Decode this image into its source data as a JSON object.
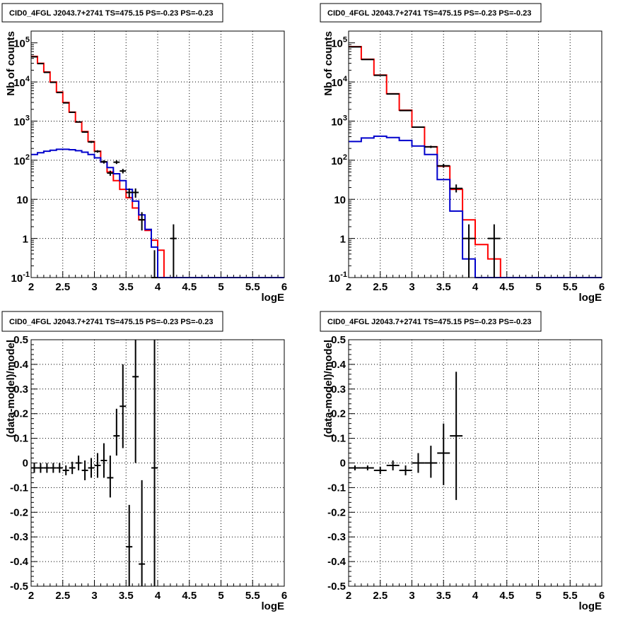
{
  "chart_data": [
    {
      "type": "line",
      "title": "CID0_4FGL J2043.7+2741 TS=475.15 PS=-0.23 PS=-0.23",
      "xlabel": "logE",
      "ylabel": "Nb of counts",
      "xlim": [
        2,
        6
      ],
      "ylim": [
        0.1,
        200000
      ],
      "yscale": "log",
      "x_ticks": [
        "2",
        "2.5",
        "3",
        "3.5",
        "4",
        "4.5",
        "5",
        "5.5",
        "6"
      ],
      "y_ticks": [
        {
          "value": 0.1,
          "base": "10",
          "exp": "-1"
        },
        {
          "value": 1,
          "base": "1",
          "exp": ""
        },
        {
          "value": 10,
          "base": "10",
          "exp": ""
        },
        {
          "value": 100,
          "base": "10",
          "exp": "2"
        },
        {
          "value": 1000,
          "base": "10",
          "exp": "3"
        },
        {
          "value": 10000,
          "base": "10",
          "exp": "4"
        },
        {
          "value": 100000,
          "base": "10",
          "exp": "5"
        }
      ],
      "grid": true,
      "bin_edges": [
        2.0,
        2.1,
        2.2,
        2.3,
        2.4,
        2.5,
        2.6,
        2.7,
        2.8,
        2.9,
        3.0,
        3.1,
        3.2,
        3.3,
        3.4,
        3.5,
        3.6,
        3.7,
        3.8,
        3.9,
        4.0,
        4.1,
        4.2,
        4.3,
        4.4,
        4.5,
        4.6,
        4.7,
        4.8,
        4.9,
        5.0,
        5.1,
        5.2,
        5.3,
        5.4,
        5.5,
        5.6,
        5.7,
        5.8,
        5.9,
        6.0
      ],
      "series": [
        {
          "color": "#ff0000",
          "values": [
            45000,
            30000,
            18000,
            10000,
            5500,
            3000,
            1700,
            950,
            540,
            300,
            170,
            90,
            50,
            30,
            18,
            11,
            6,
            3,
            1.6,
            0.9,
            0.5,
            0.1,
            0.1,
            0.1,
            0.1,
            0.1,
            0.1,
            0.1,
            0.1,
            0.1,
            0.1,
            0.1,
            0.1,
            0.1,
            0.1,
            0.1,
            0.1,
            0.1,
            0.1,
            0.1
          ]
        },
        {
          "color": "#0000cc",
          "values": [
            140,
            155,
            170,
            180,
            190,
            190,
            185,
            175,
            160,
            140,
            115,
            90,
            65,
            45,
            30,
            18,
            9,
            4,
            1.7,
            0.6,
            0.1,
            0.1,
            0.1,
            0.1,
            0.1,
            0.1,
            0.1,
            0.1,
            0.1,
            0.1,
            0.1,
            0.1,
            0.1,
            0.1,
            0.1,
            0.1,
            0.1,
            0.1,
            0.1,
            0.1
          ]
        }
      ],
      "points": [
        {
          "x": 2.05,
          "y": 44000,
          "xerr": 0.05,
          "ylo": 43800,
          "yhi": 44200
        },
        {
          "x": 2.15,
          "y": 29500,
          "xerr": 0.05,
          "ylo": 29300,
          "yhi": 29700
        },
        {
          "x": 2.25,
          "y": 17600,
          "xerr": 0.05,
          "ylo": 17450,
          "yhi": 17750
        },
        {
          "x": 2.35,
          "y": 9800,
          "xerr": 0.05,
          "ylo": 9700,
          "yhi": 9900
        },
        {
          "x": 2.45,
          "y": 5380,
          "xerr": 0.05,
          "ylo": 5310,
          "yhi": 5450
        },
        {
          "x": 2.55,
          "y": 2920,
          "xerr": 0.05,
          "ylo": 2870,
          "yhi": 2970
        },
        {
          "x": 2.65,
          "y": 1680,
          "xerr": 0.05,
          "ylo": 1640,
          "yhi": 1720
        },
        {
          "x": 2.75,
          "y": 950,
          "xerr": 0.05,
          "ylo": 920,
          "yhi": 980
        },
        {
          "x": 2.85,
          "y": 525,
          "xerr": 0.05,
          "ylo": 505,
          "yhi": 545
        },
        {
          "x": 2.95,
          "y": 293,
          "xerr": 0.05,
          "ylo": 276,
          "yhi": 310
        },
        {
          "x": 3.05,
          "y": 168,
          "xerr": 0.05,
          "ylo": 156,
          "yhi": 180
        },
        {
          "x": 3.15,
          "y": 91,
          "xerr": 0.05,
          "ylo": 82,
          "yhi": 100
        },
        {
          "x": 3.25,
          "y": 47,
          "xerr": 0.05,
          "ylo": 40,
          "yhi": 54
        },
        {
          "x": 3.35,
          "y": 89,
          "xerr": 0.05,
          "ylo": 80,
          "yhi": 99
        },
        {
          "x": 3.45,
          "y": 53,
          "xerr": 0.05,
          "ylo": 46,
          "yhi": 60
        },
        {
          "x": 3.55,
          "y": 15,
          "xerr": 0.05,
          "ylo": 11,
          "yhi": 19
        },
        {
          "x": 3.65,
          "y": 15,
          "xerr": 0.05,
          "ylo": 11,
          "yhi": 19
        },
        {
          "x": 3.75,
          "y": 3,
          "xerr": 0.05,
          "ylo": 1.6,
          "yhi": 4.7
        },
        {
          "x": 3.95,
          "y": 0.1,
          "xerr": 0.05,
          "ylo": 0.1,
          "yhi": 0.5
        },
        {
          "x": 4.25,
          "y": 1,
          "xerr": 0.05,
          "ylo": 0.1,
          "yhi": 2.3
        }
      ]
    },
    {
      "type": "line",
      "title": "CID0_4FGL J2043.7+2741 TS=475.15 PS=-0.23 PS=-0.23",
      "xlabel": "logE",
      "ylabel": "Nb of counts",
      "xlim": [
        2,
        6
      ],
      "ylim": [
        0.1,
        200000
      ],
      "yscale": "log",
      "x_ticks": [
        "2",
        "2.5",
        "3",
        "3.5",
        "4",
        "4.5",
        "5",
        "5.5",
        "6"
      ],
      "y_ticks": [
        {
          "value": 0.1,
          "base": "10",
          "exp": "-1"
        },
        {
          "value": 1,
          "base": "1",
          "exp": ""
        },
        {
          "value": 10,
          "base": "10",
          "exp": ""
        },
        {
          "value": 100,
          "base": "10",
          "exp": "2"
        },
        {
          "value": 1000,
          "base": "10",
          "exp": "3"
        },
        {
          "value": 10000,
          "base": "10",
          "exp": "4"
        },
        {
          "value": 100000,
          "base": "10",
          "exp": "5"
        }
      ],
      "grid": true,
      "bin_edges": [
        2.0,
        2.2,
        2.4,
        2.6,
        2.8,
        3.0,
        3.2,
        3.4,
        3.6,
        3.8,
        4.0,
        4.2,
        4.4,
        4.6,
        4.8,
        5.0,
        5.2,
        5.4,
        5.6,
        5.8,
        6.0
      ],
      "series": [
        {
          "color": "#ff0000",
          "values": [
            80000,
            38000,
            15000,
            5000,
            1900,
            700,
            220,
            70,
            18,
            3,
            0.7,
            0.3,
            0.1,
            0.1,
            0.1,
            0.1,
            0.1,
            0.1,
            0.1,
            0.1
          ]
        },
        {
          "color": "#0000cc",
          "values": [
            300,
            370,
            410,
            380,
            320,
            230,
            140,
            32,
            5,
            0.3,
            0.1,
            0.1,
            0.1,
            0.1,
            0.1,
            0.1,
            0.1,
            0.1,
            0.1,
            0.1
          ]
        }
      ],
      "points": [
        {
          "x": 2.1,
          "y": 79000,
          "xerr": 0.1,
          "ylo": 78700,
          "yhi": 79300
        },
        {
          "x": 2.3,
          "y": 37500,
          "xerr": 0.1,
          "ylo": 37300,
          "yhi": 37700
        },
        {
          "x": 2.5,
          "y": 14800,
          "xerr": 0.1,
          "ylo": 14680,
          "yhi": 14920
        },
        {
          "x": 2.7,
          "y": 4950,
          "xerr": 0.1,
          "ylo": 4880,
          "yhi": 5020
        },
        {
          "x": 2.9,
          "y": 1860,
          "xerr": 0.1,
          "ylo": 1820,
          "yhi": 1900
        },
        {
          "x": 3.1,
          "y": 700,
          "xerr": 0.1,
          "ylo": 675,
          "yhi": 725
        },
        {
          "x": 3.3,
          "y": 220,
          "xerr": 0.1,
          "ylo": 205,
          "yhi": 235
        },
        {
          "x": 3.5,
          "y": 72,
          "xerr": 0.1,
          "ylo": 64,
          "yhi": 81
        },
        {
          "x": 3.7,
          "y": 19,
          "xerr": 0.1,
          "ylo": 15,
          "yhi": 24
        },
        {
          "x": 3.9,
          "y": 1,
          "xerr": 0.1,
          "ylo": 0.1,
          "yhi": 2.3
        },
        {
          "x": 4.3,
          "y": 1,
          "xerr": 0.1,
          "ylo": 0.1,
          "yhi": 2.3
        }
      ]
    },
    {
      "type": "scatter",
      "title": "CID0_4FGL J2043.7+2741 TS=475.15 PS=-0.23 PS=-0.23",
      "xlabel": "logE",
      "ylabel": "(data-model)/model",
      "xlim": [
        2,
        6
      ],
      "ylim": [
        -0.5,
        0.5
      ],
      "x_ticks": [
        "2",
        "2.5",
        "3",
        "3.5",
        "4",
        "4.5",
        "5",
        "5.5",
        "6"
      ],
      "y_ticks": [
        "-0.5",
        "-0.4",
        "-0.3",
        "-0.2",
        "-0.1",
        "0",
        "0.1",
        "0.2",
        "0.3",
        "0.4",
        "0.5"
      ],
      "grid": true,
      "points": [
        {
          "x": 2.05,
          "y": -0.02,
          "xerr": 0.05,
          "ylo": -0.04,
          "yhi": 0.0
        },
        {
          "x": 2.15,
          "y": -0.02,
          "xerr": 0.05,
          "ylo": -0.04,
          "yhi": 0.0
        },
        {
          "x": 2.25,
          "y": -0.02,
          "xerr": 0.05,
          "ylo": -0.04,
          "yhi": 0.0
        },
        {
          "x": 2.35,
          "y": -0.02,
          "xerr": 0.05,
          "ylo": -0.04,
          "yhi": 0.0
        },
        {
          "x": 2.45,
          "y": -0.02,
          "xerr": 0.05,
          "ylo": -0.04,
          "yhi": 0.0
        },
        {
          "x": 2.55,
          "y": -0.03,
          "xerr": 0.05,
          "ylo": -0.05,
          "yhi": -0.01
        },
        {
          "x": 2.65,
          "y": -0.02,
          "xerr": 0.05,
          "ylo": -0.045,
          "yhi": 0.005
        },
        {
          "x": 2.75,
          "y": 0.0,
          "xerr": 0.05,
          "ylo": -0.03,
          "yhi": 0.03
        },
        {
          "x": 2.85,
          "y": -0.03,
          "xerr": 0.05,
          "ylo": -0.07,
          "yhi": 0.01
        },
        {
          "x": 2.95,
          "y": -0.02,
          "xerr": 0.05,
          "ylo": -0.06,
          "yhi": 0.02
        },
        {
          "x": 3.05,
          "y": -0.01,
          "xerr": 0.05,
          "ylo": -0.06,
          "yhi": 0.04
        },
        {
          "x": 3.15,
          "y": 0.01,
          "xerr": 0.05,
          "ylo": -0.06,
          "yhi": 0.08
        },
        {
          "x": 3.25,
          "y": -0.06,
          "xerr": 0.05,
          "ylo": -0.14,
          "yhi": 0.03
        },
        {
          "x": 3.35,
          "y": 0.11,
          "xerr": 0.05,
          "ylo": 0.03,
          "yhi": 0.22
        },
        {
          "x": 3.45,
          "y": 0.23,
          "xerr": 0.05,
          "ylo": 0.06,
          "yhi": 0.4
        },
        {
          "x": 3.55,
          "y": -0.34,
          "xerr": 0.05,
          "ylo": -0.5,
          "yhi": -0.17
        },
        {
          "x": 3.65,
          "y": 0.35,
          "xerr": 0.05,
          "ylo": 0.0,
          "yhi": 0.5
        },
        {
          "x": 3.75,
          "y": -0.41,
          "xerr": 0.05,
          "ylo": -0.5,
          "yhi": -0.07
        },
        {
          "x": 3.95,
          "y": -0.02,
          "xerr": 0.05,
          "ylo": -0.5,
          "yhi": 0.5
        }
      ]
    },
    {
      "type": "scatter",
      "title": "CID0_4FGL J2043.7+2741 TS=475.15 PS=-0.23 PS=-0.23",
      "xlabel": "logE",
      "ylabel": "(data-model)/model",
      "xlim": [
        2,
        6
      ],
      "ylim": [
        -0.5,
        0.5
      ],
      "x_ticks": [
        "2",
        "2.5",
        "3",
        "3.5",
        "4",
        "4.5",
        "5",
        "5.5",
        "6"
      ],
      "y_ticks": [
        "-0.5",
        "-0.4",
        "-0.3",
        "-0.2",
        "-0.1",
        "0",
        "0.1",
        "0.2",
        "0.3",
        "0.4",
        "0.5"
      ],
      "grid": true,
      "points": [
        {
          "x": 2.1,
          "y": -0.02,
          "xerr": 0.1,
          "ylo": -0.03,
          "yhi": -0.01
        },
        {
          "x": 2.3,
          "y": -0.02,
          "xerr": 0.1,
          "ylo": -0.03,
          "yhi": -0.01
        },
        {
          "x": 2.5,
          "y": -0.03,
          "xerr": 0.1,
          "ylo": -0.045,
          "yhi": -0.015
        },
        {
          "x": 2.7,
          "y": -0.01,
          "xerr": 0.1,
          "ylo": -0.03,
          "yhi": 0.01
        },
        {
          "x": 2.9,
          "y": -0.03,
          "xerr": 0.1,
          "ylo": -0.05,
          "yhi": -0.01
        },
        {
          "x": 3.1,
          "y": 0.0,
          "xerr": 0.1,
          "ylo": -0.04,
          "yhi": 0.04
        },
        {
          "x": 3.3,
          "y": 0.0,
          "xerr": 0.1,
          "ylo": -0.06,
          "yhi": 0.07
        },
        {
          "x": 3.5,
          "y": 0.04,
          "xerr": 0.1,
          "ylo": -0.09,
          "yhi": 0.16
        },
        {
          "x": 3.7,
          "y": 0.11,
          "xerr": 0.1,
          "ylo": -0.15,
          "yhi": 0.37
        }
      ]
    }
  ]
}
